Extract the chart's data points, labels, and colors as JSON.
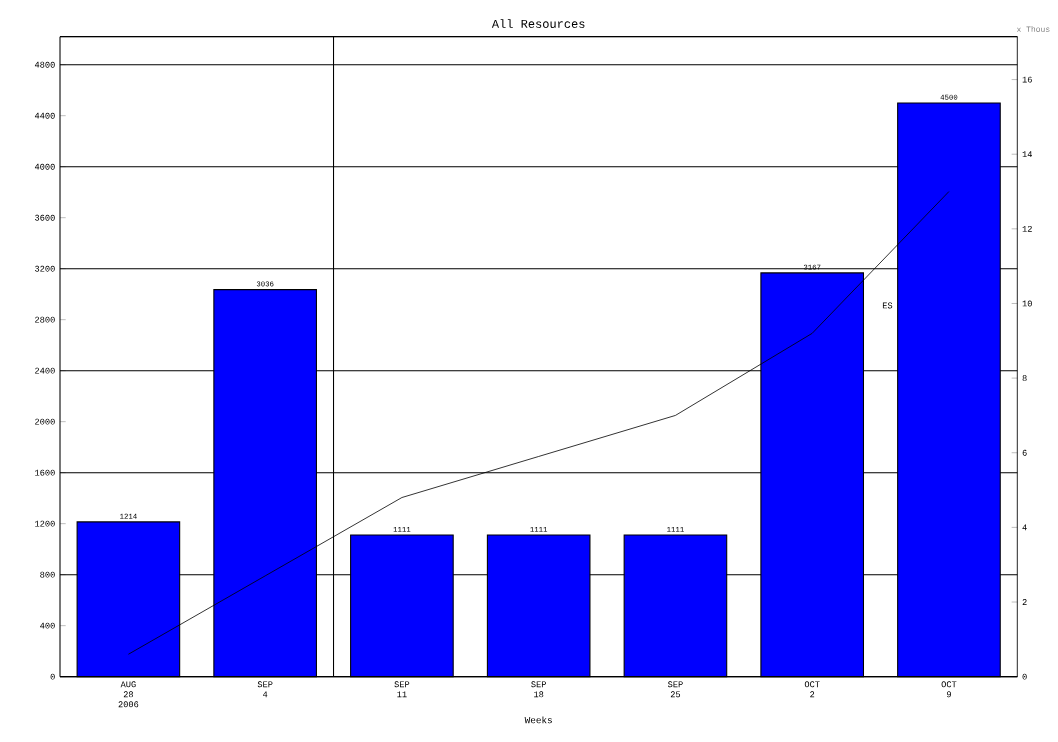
{
  "chart_data": {
    "type": "bar",
    "title": "All Resources",
    "xlabel": "Weeks",
    "y2label": "x Thous",
    "categories": [
      "AUG 28 2006",
      "SEP 4",
      "SEP 11",
      "SEP 18",
      "SEP 25",
      "OCT 2",
      "OCT 9"
    ],
    "series": [
      {
        "color": "#0000ff",
        "values": [
          1214,
          3036,
          1111,
          1111,
          1111,
          3167,
          4500
        ],
        "value_labels": [
          "1214",
          "3036",
          "1111",
          "1111",
          "1111",
          "3167",
          "4500"
        ]
      },
      {
        "type": "line",
        "axis": "y2",
        "color": "#000000",
        "values": [
          0.6,
          2.7,
          4.8,
          5.9,
          7.0,
          9.2,
          13.0
        ]
      }
    ],
    "ylim": [
      0,
      5020
    ],
    "yticks": [
      0,
      400,
      800,
      1200,
      1600,
      2000,
      2400,
      2800,
      3200,
      3600,
      4000,
      4400,
      4800
    ],
    "y2lim": [
      0,
      17.15
    ],
    "y2ticks": [
      0,
      2,
      4,
      6,
      8,
      10,
      12,
      14,
      16
    ],
    "annotations": [
      "ES"
    ],
    "grid": "y",
    "marker": "none",
    "line_style": "solid"
  }
}
